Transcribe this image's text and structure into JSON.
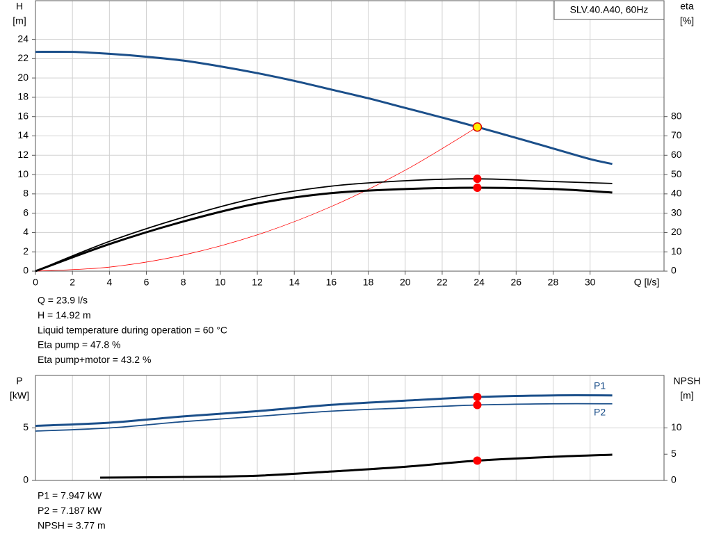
{
  "chart_data": [
    {
      "type": "line",
      "box_label": "SLV.40.A40, 60Hz",
      "ylabel": [
        "H",
        "[m]"
      ],
      "y2label": [
        "eta",
        "[%]"
      ],
      "xlabel": "Q [l/s]",
      "xlim": [
        0,
        34
      ],
      "xticks": [
        0,
        2,
        4,
        6,
        8,
        10,
        12,
        14,
        16,
        18,
        20,
        22,
        24,
        26,
        28,
        30
      ],
      "ylim": [
        0,
        28
      ],
      "yticks": [
        0,
        2,
        4,
        6,
        8,
        10,
        12,
        14,
        16,
        18,
        20,
        22,
        24
      ],
      "y2lim": [
        0,
        140
      ],
      "y2ticks": [
        0,
        10,
        20,
        30,
        40,
        50,
        60,
        70,
        80
      ],
      "grid": true,
      "series": [
        {
          "color": "#1b4f8a",
          "width": 3,
          "axis": "y",
          "x": [
            0,
            2,
            4,
            6,
            8,
            10,
            12,
            14,
            16,
            18,
            20,
            22,
            23.9,
            26,
            28,
            30,
            31.2
          ],
          "values": [
            22.7,
            22.7,
            22.5,
            22.2,
            21.8,
            21.2,
            20.5,
            19.7,
            18.8,
            17.9,
            16.9,
            15.9,
            14.92,
            13.8,
            12.7,
            11.6,
            11.1
          ],
          "marker_index": 12,
          "marker_color": "#ffee00"
        },
        {
          "color": "#ff0000",
          "width": 0.8,
          "axis": "y",
          "x": [
            0,
            4,
            8,
            12,
            16,
            20,
            23.9
          ],
          "values": [
            0,
            0.42,
            1.67,
            3.76,
            6.69,
            10.45,
            14.92
          ]
        },
        {
          "color": "#000000",
          "width": 1.8,
          "axis": "y2",
          "x": [
            0,
            4,
            8,
            12,
            16,
            20,
            23.9,
            28,
            31.2
          ],
          "values": [
            0,
            15.4,
            27.9,
            38,
            44,
            46.8,
            47.8,
            46.4,
            45.4
          ],
          "marker_index": 6,
          "marker_color": "#ff0000"
        },
        {
          "color": "#000000",
          "width": 3,
          "axis": "y2",
          "x": [
            0,
            4,
            8,
            12,
            16,
            20,
            23.9,
            28,
            31.2
          ],
          "values": [
            0,
            14,
            25.7,
            35,
            40.4,
            42.5,
            43.2,
            42.5,
            40.7
          ],
          "marker_index": 6,
          "marker_color": "#ff0000"
        }
      ],
      "annotations": [
        "Q = 23.9 l/s",
        "H = 14.92 m",
        "Liquid temperature during operation = 60 °C",
        "Eta pump = 47.8 %",
        "Eta pump+motor = 43.2 %"
      ]
    },
    {
      "type": "line",
      "ylabel": [
        "P",
        "[kW]"
      ],
      "y2label": [
        "NPSH",
        "[m]"
      ],
      "xlim": [
        0,
        34
      ],
      "ylim": [
        0,
        10
      ],
      "yticks": [
        0,
        5
      ],
      "y2lim": [
        0,
        20
      ],
      "y2ticks": [
        0,
        5,
        10
      ],
      "grid": true,
      "series": [
        {
          "name": "P1",
          "color": "#1b4f8a",
          "width": 3,
          "axis": "y",
          "x": [
            0,
            4,
            8,
            12,
            16,
            20,
            23.9,
            28,
            31.2
          ],
          "values": [
            5.2,
            5.5,
            6.1,
            6.6,
            7.2,
            7.6,
            7.947,
            8.1,
            8.1
          ],
          "marker_index": 6,
          "marker_color": "#ff0000"
        },
        {
          "name": "P2",
          "color": "#1b4f8a",
          "width": 1.8,
          "axis": "y",
          "x": [
            0,
            4,
            8,
            12,
            16,
            20,
            23.9,
            28,
            31.2
          ],
          "values": [
            4.7,
            5.0,
            5.6,
            6.1,
            6.6,
            6.9,
            7.187,
            7.3,
            7.3
          ],
          "marker_index": 6,
          "marker_color": "#ff0000"
        },
        {
          "color": "#000000",
          "width": 3,
          "axis": "y2",
          "x": [
            3.5,
            8,
            12,
            16,
            20,
            23.9,
            28,
            31.2
          ],
          "values": [
            0.53,
            0.66,
            0.9,
            1.7,
            2.6,
            3.77,
            4.5,
            4.9
          ],
          "marker_index": 5,
          "marker_color": "#ff0000"
        }
      ],
      "annotations": [
        "P1 = 7.947 kW",
        "P2 = 7.187 kW",
        "NPSH = 3.77 m"
      ]
    }
  ]
}
